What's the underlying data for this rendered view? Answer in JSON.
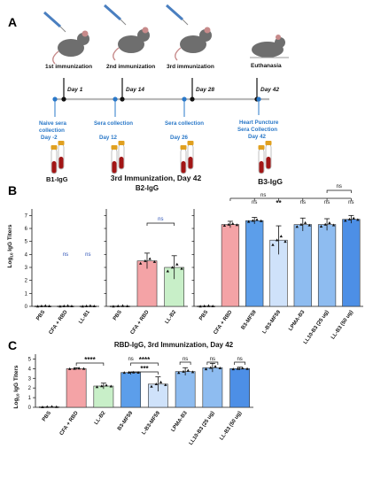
{
  "panel_a": {
    "letter": "A",
    "immunizations": [
      "1st immunization",
      "2nd immunization",
      "3rd immunization",
      "Euthanasia"
    ],
    "days": [
      "Day 1",
      "Day 14",
      "Day 28",
      "Day 42"
    ],
    "collections": [
      [
        "Naive sera",
        "collection",
        "Day -2"
      ],
      [
        "Sera collection",
        "",
        "Day 12"
      ],
      [
        "Sera collection",
        "",
        "Day 26"
      ],
      [
        "Heart Puncture",
        "Sera Collection",
        "Day 42"
      ]
    ],
    "colors": {
      "timeline": "#2a78c8",
      "tube": "#e0a020",
      "blood": "#a21616",
      "mouse": "#6e6e6e"
    }
  },
  "panel_b": {
    "letter": "B",
    "tube_label": "B1-IgG",
    "header_line1": "3rd Immunization, Day 42",
    "ylabel": "Log10 IgG Titers",
    "yticks": [
      "0",
      "1",
      "2",
      "3",
      "4",
      "5",
      "6",
      "7"
    ]
  },
  "panel_c": {
    "letter": "C"
  },
  "chart_data": [
    {
      "type": "bar",
      "title": "",
      "subtitle": "",
      "categories": [
        "PBS",
        "CFA + RBD",
        "LL-B1"
      ],
      "values": [
        0.02,
        0.02,
        0.02
      ],
      "errors": [
        0,
        0,
        0
      ],
      "colors": [
        "#ffffff",
        "#ffffff",
        "#ffffff"
      ],
      "annotations": [
        "ns",
        "ns"
      ],
      "ylabel": "Log10 IgG Titers",
      "ylim": [
        0,
        7.5
      ]
    },
    {
      "type": "bar",
      "title": "B2-IgG",
      "categories": [
        "PBS",
        "CFA + RBD",
        "LL-B2"
      ],
      "values": [
        0.02,
        3.5,
        3.0
      ],
      "errors": [
        0,
        0.6,
        0.9
      ],
      "colors": [
        "#ffffff",
        "#f4a3a6",
        "#c8efc8"
      ],
      "annotations": [
        "ns"
      ],
      "ylim": [
        0,
        7.5
      ]
    },
    {
      "type": "bar",
      "title": "B3-IgG",
      "categories": [
        "PBS",
        "CFA + RBD",
        "B3-MF59",
        "L-B3-MF59",
        "LPMA-B3",
        "LL10-B3 (25 ug)",
        "LL-B3 (50 ug)"
      ],
      "values": [
        0.02,
        6.3,
        6.6,
        5.1,
        6.3,
        6.3,
        6.7
      ],
      "errors": [
        0,
        0.25,
        0.25,
        1.1,
        0.5,
        0.45,
        0.3
      ],
      "colors": [
        "#ffffff",
        "#f4a3a6",
        "#5c9eea",
        "#cfe2fa",
        "#8ebcf0",
        "#8ebcf0",
        "#4d8fe6"
      ],
      "annotations": [
        "ns",
        "**",
        "ns",
        "ns",
        "ns",
        "ns",
        "ns"
      ],
      "ylim": [
        0,
        7.5
      ]
    },
    {
      "type": "bar",
      "title": "RBD-IgG, 3rd Immunization, Day 42",
      "categories": [
        "PBS",
        "CFA + RBD",
        "LL-B2",
        "B3-MF59",
        "L-B3-MF59",
        "LPMA-B3",
        "LL10-B3 (25 ug)",
        "LL-B3 (50 ug)"
      ],
      "values": [
        0.05,
        4.0,
        2.2,
        3.6,
        2.4,
        3.7,
        4.1,
        4.0
      ],
      "errors": [
        0,
        0.1,
        0.3,
        0.05,
        0.75,
        0.4,
        0.45,
        0.15
      ],
      "colors": [
        "#ffffff",
        "#f4a3a6",
        "#c8efc8",
        "#5c9eea",
        "#cfe2fa",
        "#8ebcf0",
        "#8ebcf0",
        "#4d8fe6"
      ],
      "annotations": [
        "****",
        "ns",
        "****",
        "***",
        "ns",
        "ns",
        "ns"
      ],
      "ylabel": "Log10 IgG Titers",
      "yticks": [
        "0",
        "1",
        "2",
        "3",
        "4",
        "5"
      ],
      "ylim": [
        0,
        5.5
      ]
    }
  ]
}
